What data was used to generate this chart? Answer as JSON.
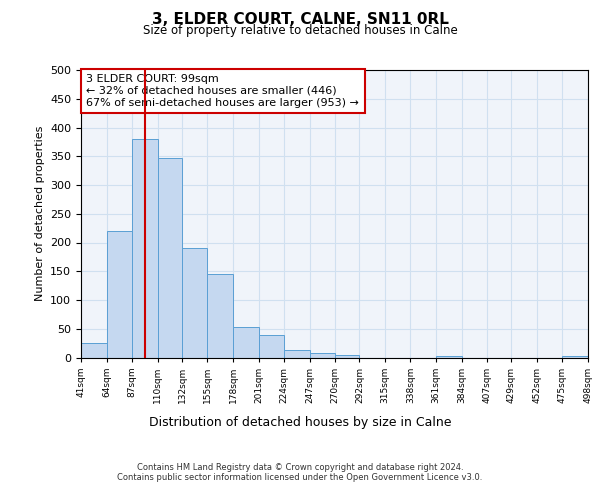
{
  "title": "3, ELDER COURT, CALNE, SN11 0RL",
  "subtitle": "Size of property relative to detached houses in Calne",
  "xlabel": "Distribution of detached houses by size in Calne",
  "ylabel": "Number of detached properties",
  "bin_edges": [
    41,
    64,
    87,
    110,
    132,
    155,
    178,
    201,
    224,
    247,
    270,
    292,
    315,
    338,
    361,
    384,
    407,
    429,
    452,
    475,
    498
  ],
  "bin_heights": [
    25,
    220,
    380,
    347,
    190,
    145,
    53,
    40,
    13,
    8,
    5,
    0,
    0,
    0,
    2,
    0,
    0,
    0,
    0,
    2
  ],
  "bar_facecolor": "#c5d8f0",
  "bar_edgecolor": "#5a9fd4",
  "property_line_x": 99,
  "property_line_color": "#cc0000",
  "annotation_line1": "3 ELDER COURT: 99sqm",
  "annotation_line2": "← 32% of detached houses are smaller (446)",
  "annotation_line3": "67% of semi-detached houses are larger (953) →",
  "annotation_box_color": "#cc0000",
  "ylim": [
    0,
    500
  ],
  "yticks": [
    0,
    50,
    100,
    150,
    200,
    250,
    300,
    350,
    400,
    450,
    500
  ],
  "tick_labels": [
    "41sqm",
    "64sqm",
    "87sqm",
    "110sqm",
    "132sqm",
    "155sqm",
    "178sqm",
    "201sqm",
    "224sqm",
    "247sqm",
    "270sqm",
    "292sqm",
    "315sqm",
    "338sqm",
    "361sqm",
    "384sqm",
    "407sqm",
    "429sqm",
    "452sqm",
    "475sqm",
    "498sqm"
  ],
  "footer_text": "Contains HM Land Registry data © Crown copyright and database right 2024.\nContains public sector information licensed under the Open Government Licence v3.0.",
  "grid_color": "#d0e0f0",
  "background_color": "#f0f4fa"
}
